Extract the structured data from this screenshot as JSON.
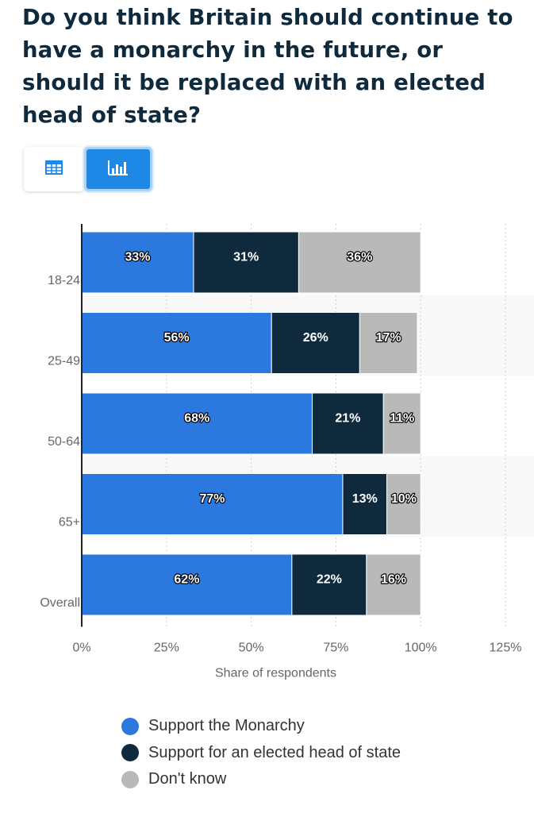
{
  "title": "Do you think Britain should continue to have a monarchy in the future, or should it be replaced with an elected head of state?",
  "toolbar": {
    "table_icon": "table-icon",
    "chart_icon": "bar-chart-icon"
  },
  "colors": {
    "monarchy": "#2b79de",
    "elected": "#0f2a3d",
    "dont_know": "#b9b9b9",
    "accent": "#1d88e5"
  },
  "chart_data": {
    "type": "bar",
    "orientation": "horizontal",
    "stacked": true,
    "categories": [
      "18-24",
      "25-49",
      "50-64",
      "65+",
      "Overall"
    ],
    "series": [
      {
        "name": "Support the Monarchy",
        "values": [
          33,
          56,
          68,
          77,
          62
        ],
        "labels": [
          "33%",
          "56%",
          "68%",
          "77%",
          "62%"
        ]
      },
      {
        "name": "Support for an elected head of state",
        "values": [
          31,
          26,
          21,
          13,
          22
        ],
        "labels": [
          "31%",
          "26%",
          "21%",
          "13%",
          "22%"
        ]
      },
      {
        "name": "Don't know",
        "values": [
          36,
          17,
          11,
          10,
          16
        ],
        "labels": [
          "36%",
          "17%",
          "11%",
          "10%",
          "16%"
        ]
      }
    ],
    "xlim": [
      0,
      125
    ],
    "xticks": [
      0,
      25,
      50,
      75,
      100,
      125
    ],
    "xtick_labels": [
      "0%",
      "25%",
      "50%",
      "75%",
      "100%",
      "125%"
    ],
    "xlabel": "Share of respondents",
    "ylabel": "",
    "grid": true,
    "legend_position": "bottom"
  }
}
